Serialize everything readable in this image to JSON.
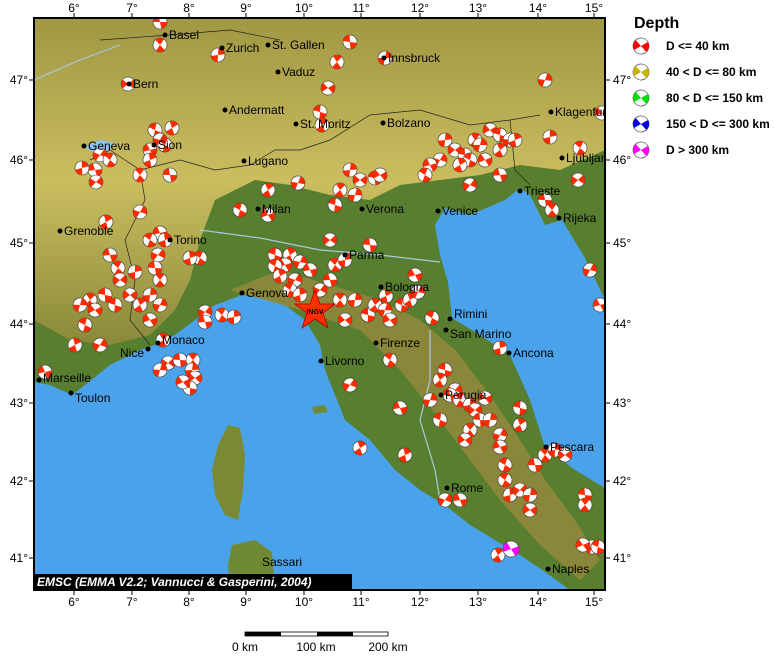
{
  "legend": {
    "title": "Depth",
    "items": [
      {
        "label": "D <= 40 km",
        "color": "#ff0000"
      },
      {
        "label": "40 < D <= 80 km",
        "color": "#c8b400"
      },
      {
        "label": "80 < D <= 150 km",
        "color": "#00e000"
      },
      {
        "label": "150 < D <= 300 km",
        "color": "#0000e0"
      },
      {
        "label": "D > 300 km",
        "color": "#ff00ff"
      }
    ]
  },
  "axes": {
    "lon_labels": [
      "6°",
      "7°",
      "8°",
      "9°",
      "10°",
      "11°",
      "12°",
      "13°",
      "14°",
      "15°"
    ],
    "lat_labels": [
      "47°",
      "46°",
      "45°",
      "44°",
      "43°",
      "42°",
      "41°"
    ]
  },
  "cities": [
    "Basel",
    "Zurich",
    "St. Gallen",
    "Vaduz",
    "Bern",
    "Innsbruck",
    "Andermatt",
    "St. Moritz",
    "Bolzano",
    "Klagenfurt",
    "Geneva",
    "Sion",
    "Lugano",
    "Ljubljana",
    "Milan",
    "Verona",
    "Venice",
    "Trieste",
    "Rijeka",
    "Grenoble",
    "Torino",
    "Parma",
    "Genova",
    "Bologna",
    "Rimini",
    "San Marino",
    "Monaco",
    "Nice",
    "Firenze",
    "Ancona",
    "Marseille",
    "Livorno",
    "Toulon",
    "Perugia",
    "Pescara",
    "Rome",
    "Naples",
    "Sassari"
  ],
  "marker": {
    "label": "INGV",
    "color": "#ff3000"
  },
  "credit": "EMSC (EMMA V2.2; Vannucci & Gasperini, 2004)",
  "scale_bar": {
    "labels": [
      "0 km",
      "100 km",
      "200 km"
    ]
  },
  "colors": {
    "sea": "#4aa3ea",
    "lowland": "#4f7d2c",
    "mountain": "#c9b456",
    "mechanism_shallow": "#ff2a00"
  }
}
